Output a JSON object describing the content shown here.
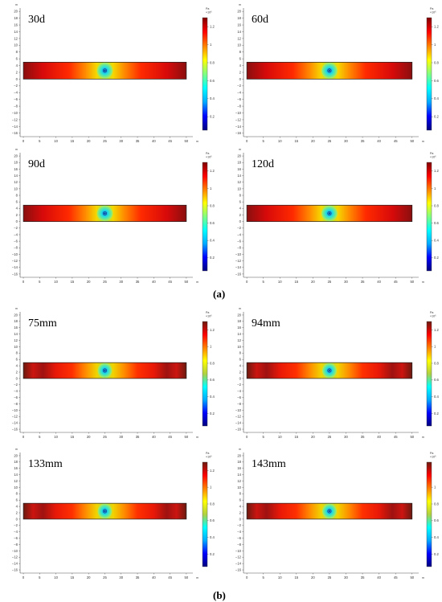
{
  "captions": {
    "a": "(a)",
    "b": "(b)"
  },
  "units": {
    "axis": "m",
    "colorbar_unit": "Pa",
    "colorbar_scale": "×10⁶"
  },
  "colors": {
    "plot_bg": "#ffffff",
    "axis": "#555555",
    "frame": "#222222",
    "ramp": [
      "#00007f",
      "#0000ff",
      "#00aaff",
      "#00ffff",
      "#80ff80",
      "#ffff00",
      "#ff8000",
      "#ff0000",
      "#7f0000"
    ],
    "ramp_b": [
      "#00007f",
      "#0000ff",
      "#00aaff",
      "#00ffff",
      "#b0d040",
      "#ffff00",
      "#ff8000",
      "#ff0000",
      "#6b1a10"
    ]
  },
  "chart_data": [
    {
      "type": "heatmap",
      "title": "30d",
      "group": "a",
      "x_ticks": [
        0,
        5,
        10,
        15,
        20,
        25,
        30,
        35,
        40,
        45,
        50
      ],
      "xlim": [
        -1,
        52
      ],
      "y_ticks": [
        20,
        18,
        16,
        14,
        12,
        10,
        8,
        6,
        4,
        2,
        0,
        -2,
        -4,
        -6,
        -8,
        -10,
        -12,
        -14,
        -16
      ],
      "ylim": [
        -17,
        21
      ],
      "strip_y": [
        0,
        5
      ],
      "hole_x": 25,
      "hole_y": 2.5,
      "colorbar_ticks": [
        1.2,
        1,
        0.8,
        0.6,
        0.4,
        0.2
      ],
      "colorbar_range": [
        0.05,
        1.3
      ]
    },
    {
      "type": "heatmap",
      "title": "60d",
      "group": "a",
      "x_ticks": [
        0,
        5,
        10,
        15,
        20,
        25,
        30,
        35,
        40,
        45,
        50
      ],
      "xlim": [
        -1,
        52
      ],
      "y_ticks": [
        20,
        18,
        16,
        14,
        12,
        10,
        8,
        6,
        4,
        2,
        0,
        -2,
        -4,
        -6,
        -8,
        -10,
        -12,
        -14,
        -16
      ],
      "ylim": [
        -17,
        21
      ],
      "strip_y": [
        0,
        5
      ],
      "hole_x": 25,
      "hole_y": 2.5,
      "colorbar_ticks": [
        1.2,
        1,
        0.8,
        0.6,
        0.4,
        0.2
      ],
      "colorbar_range": [
        0.05,
        1.3
      ]
    },
    {
      "type": "heatmap",
      "title": "90d",
      "group": "a",
      "x_ticks": [
        0,
        5,
        10,
        15,
        20,
        25,
        30,
        35,
        40,
        45,
        50
      ],
      "xlim": [
        -1,
        52
      ],
      "y_ticks": [
        20,
        18,
        16,
        14,
        12,
        10,
        8,
        6,
        4,
        2,
        0,
        -2,
        -4,
        -6,
        -8,
        -10,
        -12,
        -14,
        -16
      ],
      "ylim": [
        -17,
        21
      ],
      "strip_y": [
        0,
        5
      ],
      "hole_x": 25,
      "hole_y": 2.5,
      "colorbar_ticks": [
        1.2,
        1,
        0.8,
        0.6,
        0.4,
        0.2
      ],
      "colorbar_range": [
        0.05,
        1.3
      ]
    },
    {
      "type": "heatmap",
      "title": "120d",
      "group": "a",
      "x_ticks": [
        0,
        5,
        10,
        15,
        20,
        25,
        30,
        35,
        40,
        45,
        50
      ],
      "xlim": [
        -1,
        52
      ],
      "y_ticks": [
        20,
        18,
        16,
        14,
        12,
        10,
        8,
        6,
        4,
        2,
        0,
        -2,
        -4,
        -6,
        -8,
        -10,
        -12,
        -14,
        -16
      ],
      "ylim": [
        -17,
        21
      ],
      "strip_y": [
        0,
        5
      ],
      "hole_x": 25,
      "hole_y": 2.5,
      "colorbar_ticks": [
        1.2,
        1,
        0.8,
        0.6,
        0.4,
        0.2
      ],
      "colorbar_range": [
        0.05,
        1.3
      ]
    },
    {
      "type": "heatmap",
      "title": "75mm",
      "group": "b",
      "x_ticks": [
        0,
        5,
        10,
        15,
        20,
        25,
        30,
        35,
        40,
        45,
        50
      ],
      "xlim": [
        -1,
        52
      ],
      "y_ticks": [
        20,
        18,
        16,
        14,
        12,
        10,
        8,
        6,
        4,
        2,
        0,
        -2,
        -4,
        -6,
        -8,
        -10,
        -12,
        -14,
        -16
      ],
      "ylim": [
        -17,
        21
      ],
      "strip_y": [
        0,
        5
      ],
      "hole_x": 25,
      "hole_y": 2.5,
      "colorbar_ticks": [
        1.2,
        1,
        0.8,
        0.6,
        0.4,
        0.2
      ],
      "colorbar_range": [
        0.05,
        1.3
      ]
    },
    {
      "type": "heatmap",
      "title": "94mm",
      "group": "b",
      "x_ticks": [
        0,
        5,
        10,
        15,
        20,
        25,
        30,
        35,
        40,
        45,
        50
      ],
      "xlim": [
        -1,
        52
      ],
      "y_ticks": [
        20,
        18,
        16,
        14,
        12,
        10,
        8,
        6,
        4,
        2,
        0,
        -2,
        -4,
        -6,
        -8,
        -10,
        -12,
        -14,
        -16
      ],
      "ylim": [
        -17,
        21
      ],
      "strip_y": [
        0,
        5
      ],
      "hole_x": 25,
      "hole_y": 2.5,
      "colorbar_ticks": [
        1.2,
        1,
        0.8,
        0.6,
        0.4,
        0.2
      ],
      "colorbar_range": [
        0.05,
        1.3
      ]
    },
    {
      "type": "heatmap",
      "title": "133mm",
      "group": "b",
      "x_ticks": [
        0,
        5,
        10,
        15,
        20,
        25,
        30,
        35,
        40,
        45,
        50
      ],
      "xlim": [
        -1,
        52
      ],
      "y_ticks": [
        20,
        18,
        16,
        14,
        12,
        10,
        8,
        6,
        4,
        2,
        0,
        -2,
        -4,
        -6,
        -8,
        -10,
        -12,
        -14,
        -16
      ],
      "ylim": [
        -17,
        21
      ],
      "strip_y": [
        0,
        5
      ],
      "hole_x": 25,
      "hole_y": 2.5,
      "colorbar_ticks": [
        1.2,
        1,
        0.8,
        0.6,
        0.4,
        0.2
      ],
      "colorbar_range": [
        0.05,
        1.3
      ]
    },
    {
      "type": "heatmap",
      "title": "143mm",
      "group": "b",
      "x_ticks": [
        0,
        5,
        10,
        15,
        20,
        25,
        30,
        35,
        40,
        45,
        50
      ],
      "xlim": [
        -1,
        52
      ],
      "y_ticks": [
        20,
        18,
        16,
        14,
        12,
        10,
        8,
        6,
        4,
        2,
        0,
        -2,
        -4,
        -6,
        -8,
        -10,
        -12,
        -14,
        -16
      ],
      "ylim": [
        -17,
        21
      ],
      "strip_y": [
        0,
        5
      ],
      "hole_x": 25,
      "hole_y": 2.5,
      "colorbar_ticks": [
        1,
        0.8,
        0.6,
        0.4,
        0.2
      ],
      "colorbar_range": [
        0.05,
        1.3
      ]
    }
  ]
}
